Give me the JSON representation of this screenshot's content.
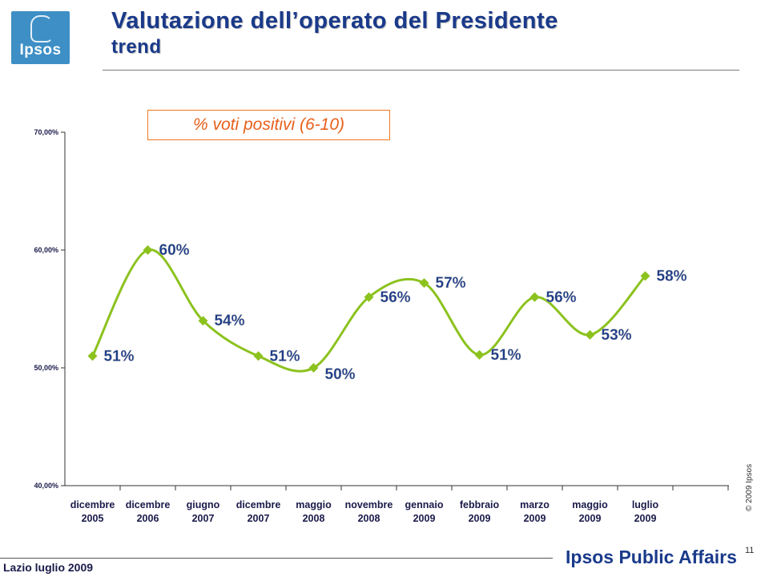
{
  "header": {
    "logo_text": "Ipsos",
    "title": "Valutazione dell’operato del Presidente",
    "subtitle": "trend"
  },
  "legend_label": "% voti positivi (6-10)",
  "copyright": "© 2009 Ipsos",
  "footer": {
    "left": "Lazio luglio 2009",
    "brand": "Ipsos Public Affairs",
    "page": "11"
  },
  "colors": {
    "series": "#8cc21e",
    "title": "#1a3a8a",
    "legend": "#e8601c",
    "logo": "#3d8fc6"
  },
  "chart_data": {
    "type": "line",
    "title": "",
    "xlabel": "",
    "ylabel": "",
    "ylim": [
      0.4,
      0.7
    ],
    "yticks": [
      "40,00%",
      "50,00%",
      "60,00%",
      "70,00%"
    ],
    "grid": false,
    "smooth": true,
    "categories": [
      [
        "dicembre",
        "2005"
      ],
      [
        "dicembre",
        "2006"
      ],
      [
        "giugno",
        "2007"
      ],
      [
        "dicembre",
        "2007"
      ],
      [
        "maggio",
        "2008"
      ],
      [
        "novembre",
        "2008"
      ],
      [
        "gennaio",
        "2009"
      ],
      [
        "febbraio",
        "2009"
      ],
      [
        "marzo",
        "2009"
      ],
      [
        "maggio",
        "2009"
      ],
      [
        "luglio",
        "2009"
      ]
    ],
    "series": [
      {
        "values": [
          0.51,
          0.6,
          0.54,
          0.51,
          0.5,
          0.56,
          0.572,
          0.511,
          0.56,
          0.528,
          0.578
        ],
        "labels": [
          "51%",
          "60%",
          "54%",
          "51%",
          "50%",
          "56%",
          "57%",
          "51%",
          "56%",
          "53%",
          "58%"
        ]
      }
    ]
  }
}
